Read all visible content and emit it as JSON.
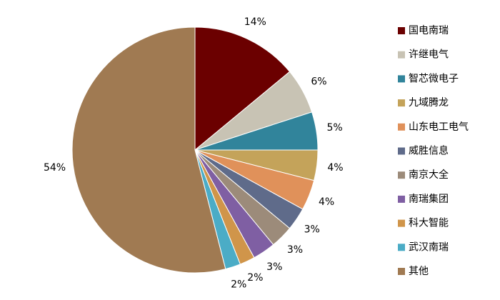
{
  "chart_data": {
    "type": "pie",
    "categories": [
      "国电南瑞",
      "许继电气",
      "智芯微电子",
      "九域腾龙",
      "山东电工电气",
      "威胜信息",
      "南京大全",
      "南瑞集团",
      "科大智能",
      "武汉南瑞",
      "其他"
    ],
    "values": [
      14,
      6,
      5,
      4,
      4,
      3,
      3,
      3,
      2,
      2,
      54
    ],
    "value_labels": [
      "14%",
      "6%",
      "5%",
      "4%",
      "4%",
      "3%",
      "3%",
      "3%",
      "2%",
      "2%",
      "54%"
    ],
    "colors": [
      "#6b0000",
      "#c8c3b4",
      "#31849b",
      "#c4a35a",
      "#e0915a",
      "#5f6b8a",
      "#9c8b7a",
      "#7f5fa3",
      "#d0954a",
      "#4bacc6",
      "#a07a52"
    ],
    "legend": "right"
  }
}
